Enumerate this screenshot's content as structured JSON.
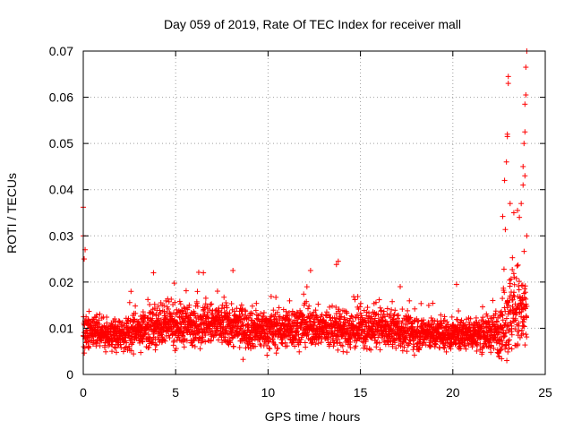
{
  "chart_data": {
    "type": "scatter",
    "title": "Day 059 of 2019, Rate Of TEC Index for receiver mall",
    "xlabel": "GPS time / hours",
    "ylabel": "ROTI / TECUs",
    "xlim": [
      0,
      25
    ],
    "ylim": [
      0,
      0.07
    ],
    "xticks": [
      0,
      5,
      10,
      15,
      20,
      25
    ],
    "xtick_labels": [
      "0",
      "5",
      "10",
      "15",
      "20",
      "25"
    ],
    "yticks": [
      0,
      0.01,
      0.02,
      0.03,
      0.04,
      0.05,
      0.06,
      0.07
    ],
    "ytick_labels": [
      "0",
      "0.01",
      "0.02",
      "0.03",
      "0.04",
      "0.05",
      "0.06",
      "0.07"
    ],
    "grid": true,
    "marker": "+",
    "color": "#ff0000",
    "series": [
      {
        "name": "ROTI",
        "baseline_profile": {
          "x": [
            0,
            2,
            4,
            6,
            8,
            10,
            12,
            14,
            16,
            18,
            20,
            22,
            22.5,
            23,
            23.5,
            24
          ],
          "center": [
            0.0095,
            0.0085,
            0.0105,
            0.011,
            0.0105,
            0.0095,
            0.0105,
            0.0095,
            0.01,
            0.009,
            0.0085,
            0.009,
            0.0095,
            0.013,
            0.014,
            0.012
          ],
          "spread": [
            0.004,
            0.0035,
            0.0045,
            0.005,
            0.005,
            0.0045,
            0.0045,
            0.0045,
            0.0045,
            0.004,
            0.0035,
            0.004,
            0.006,
            0.01,
            0.011,
            0.009
          ]
        },
        "notable_points": [
          {
            "x": 0.0,
            "y": 0.0362
          },
          {
            "x": 0.0,
            "y": 0.03
          },
          {
            "x": 0.05,
            "y": 0.025
          },
          {
            "x": 0.1,
            "y": 0.027
          },
          {
            "x": 3.8,
            "y": 0.022
          },
          {
            "x": 6.5,
            "y": 0.022
          },
          {
            "x": 8.1,
            "y": 0.0225
          },
          {
            "x": 12.3,
            "y": 0.0225
          },
          {
            "x": 13.8,
            "y": 0.0245
          },
          {
            "x": 13.7,
            "y": 0.0238
          },
          {
            "x": 20.2,
            "y": 0.0195
          },
          {
            "x": 22.7,
            "y": 0.0342
          },
          {
            "x": 22.8,
            "y": 0.042
          },
          {
            "x": 22.9,
            "y": 0.046
          },
          {
            "x": 22.95,
            "y": 0.052
          },
          {
            "x": 22.95,
            "y": 0.0515
          },
          {
            "x": 23.0,
            "y": 0.0645
          },
          {
            "x": 23.0,
            "y": 0.063
          },
          {
            "x": 23.1,
            "y": 0.037
          },
          {
            "x": 23.3,
            "y": 0.035
          },
          {
            "x": 23.5,
            "y": 0.0355
          },
          {
            "x": 23.6,
            "y": 0.034
          },
          {
            "x": 23.7,
            "y": 0.037
          },
          {
            "x": 23.8,
            "y": 0.041
          },
          {
            "x": 23.8,
            "y": 0.045
          },
          {
            "x": 23.85,
            "y": 0.05
          },
          {
            "x": 23.9,
            "y": 0.0525
          },
          {
            "x": 23.9,
            "y": 0.0585
          },
          {
            "x": 23.95,
            "y": 0.0605
          },
          {
            "x": 23.95,
            "y": 0.0665
          },
          {
            "x": 24.0,
            "y": 0.07
          },
          {
            "x": 23.9,
            "y": 0.043
          },
          {
            "x": 24.0,
            "y": 0.03
          }
        ]
      }
    ]
  }
}
